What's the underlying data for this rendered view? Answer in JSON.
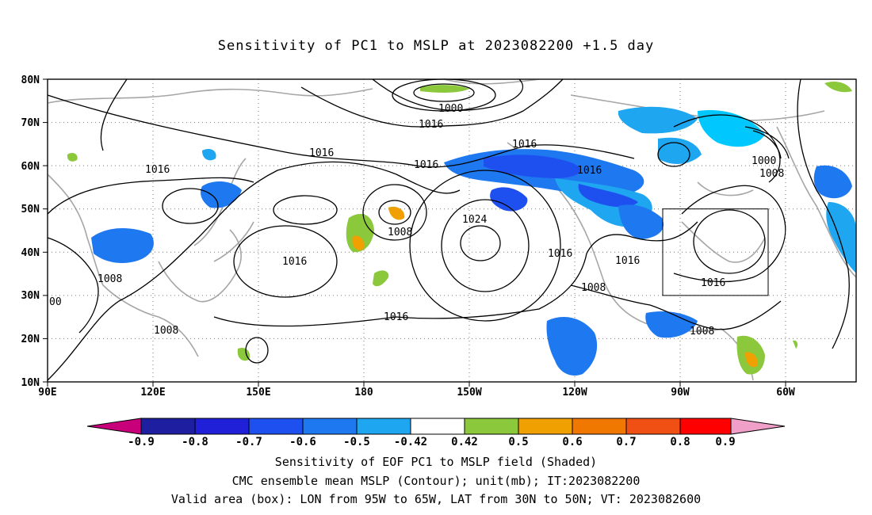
{
  "title": "Sensitivity of PC1 to MSLP at 2023082200 +1.5 day",
  "map": {
    "lat_labels": [
      "80N",
      "70N",
      "60N",
      "50N",
      "40N",
      "30N",
      "20N",
      "10N"
    ],
    "lon_labels": [
      "90E",
      "120E",
      "150E",
      "180",
      "150W",
      "120W",
      "90W",
      "60W"
    ],
    "contour_labels": [
      {
        "text": "1000"
      },
      {
        "text": "1016"
      },
      {
        "text": "1016"
      },
      {
        "text": "1016"
      },
      {
        "text": "1016"
      },
      {
        "text": "1016"
      },
      {
        "text": "1016"
      },
      {
        "text": "1008"
      },
      {
        "text": "1024"
      },
      {
        "text": "1016"
      },
      {
        "text": "1016"
      },
      {
        "text": "1016"
      },
      {
        "text": "1008"
      },
      {
        "text": "1016"
      },
      {
        "text": "1008"
      },
      {
        "text": "1008"
      },
      {
        "text": "1008"
      },
      {
        "text": "1016"
      },
      {
        "text": "1000"
      },
      {
        "text": "1008"
      },
      {
        "text": "00"
      }
    ],
    "valid_box": {
      "lon_min": "95W",
      "lon_max": "65W",
      "lat_min": "30N",
      "lat_max": "50N"
    }
  },
  "colorbar": {
    "labels": [
      "-0.9",
      "-0.8",
      "-0.7",
      "-0.6",
      "-0.5",
      "-0.42",
      "0.42",
      "0.5",
      "0.6",
      "0.7",
      "0.8",
      "0.9"
    ],
    "colors": [
      "#c8007a",
      "#1e1ea0",
      "#2020d8",
      "#1e50f0",
      "#1e78f0",
      "#1ea6f0",
      "#00c8ff",
      "#ffffff",
      "#8cc83c",
      "#f0a000",
      "#f07800",
      "#f05014",
      "#f01e1e",
      "#ff0000",
      "#f0a0c8"
    ]
  },
  "footer": {
    "line1": "Sensitivity of EOF PC1 to MSLP field (Shaded)",
    "line2": "CMC ensemble mean MSLP (Contour); unit(mb); IT:2023082200",
    "line3": "Valid area (box): LON from 95W to 65W, LAT from 30N to 50N; VT: 2023082600"
  }
}
